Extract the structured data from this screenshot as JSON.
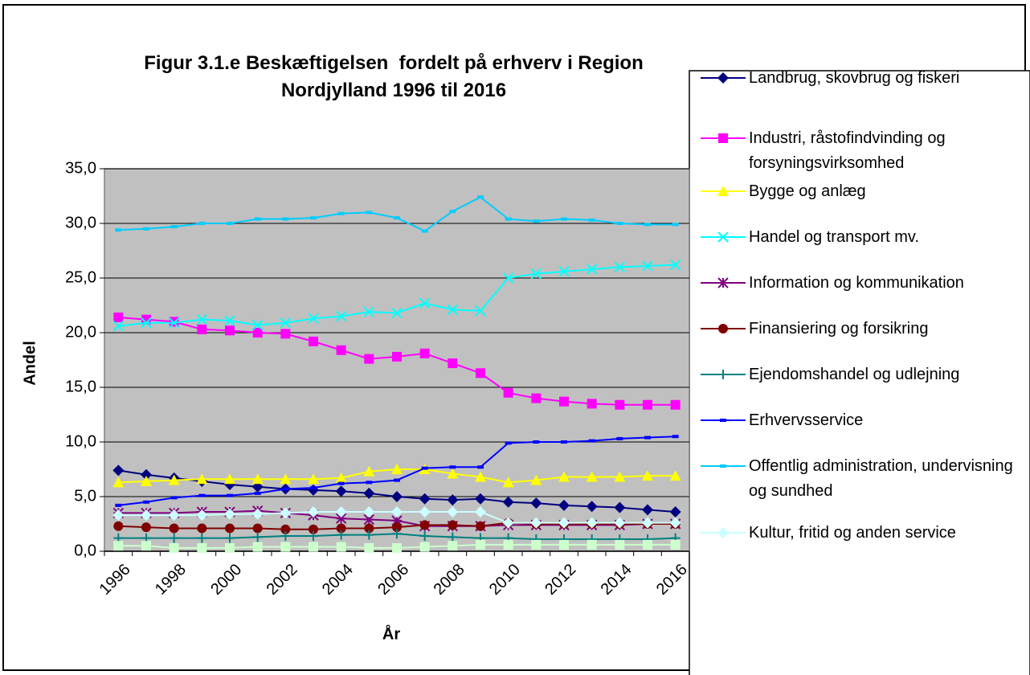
{
  "chart_data": {
    "type": "line",
    "title": "Figur 3.1.e Beskæftigelsen  fordelt på erhverv i Region Nordjylland 1996 til 2016",
    "x_label": "År",
    "y_label": "Andel",
    "categories": [
      "1996",
      null,
      "1998",
      null,
      "2000",
      null,
      "2002",
      null,
      "2004",
      null,
      "2006",
      null,
      "2008",
      null,
      "2010",
      null,
      "2012",
      null,
      "2014",
      null,
      "2016"
    ],
    "ylim": [
      0,
      35
    ],
    "yticks": [
      {
        "value": 0,
        "label": "0,0"
      },
      {
        "value": 5,
        "label": "5,0"
      },
      {
        "value": 10,
        "label": "10,0"
      },
      {
        "value": 15,
        "label": "15,0"
      },
      {
        "value": 20,
        "label": "20,0"
      },
      {
        "value": 25,
        "label": "25,0"
      },
      {
        "value": 30,
        "label": "30,0"
      },
      {
        "value": 35,
        "label": "35,0"
      }
    ],
    "grid": true,
    "plot_background": "#c0c0c0",
    "legend_position": "right",
    "series": [
      {
        "name": "Landbrug, skovbrug og fiskeri",
        "color": "#000080",
        "marker": "diamond",
        "values": [
          7.4,
          7.0,
          6.7,
          6.4,
          6.1,
          5.9,
          5.7,
          5.6,
          5.5,
          5.3,
          5.0,
          4.8,
          4.7,
          4.8,
          4.5,
          4.4,
          4.2,
          4.1,
          4.0,
          3.8,
          3.6
        ]
      },
      {
        "name": "Industri, råstofindvinding og forsyningsvirksomhed",
        "color": "#ff00ff",
        "marker": "square",
        "values": [
          21.4,
          21.2,
          21.0,
          20.3,
          20.2,
          20.0,
          19.9,
          19.2,
          18.4,
          17.6,
          17.8,
          18.1,
          17.2,
          16.3,
          14.5,
          14.0,
          13.7,
          13.5,
          13.4,
          13.4,
          13.4
        ]
      },
      {
        "name": "Bygge og anlæg",
        "color": "#ffff00",
        "marker": "triangle",
        "values": [
          6.3,
          6.4,
          6.5,
          6.6,
          6.6,
          6.6,
          6.6,
          6.6,
          6.7,
          7.3,
          7.5,
          7.5,
          7.1,
          6.8,
          6.3,
          6.5,
          6.8,
          6.8,
          6.8,
          6.9,
          6.9
        ]
      },
      {
        "name": "Handel og transport mv.",
        "color": "#00ffff",
        "marker": "x",
        "values": [
          20.6,
          20.9,
          20.9,
          21.2,
          21.1,
          20.7,
          20.9,
          21.3,
          21.5,
          21.9,
          21.8,
          22.7,
          22.1,
          22.0,
          25.0,
          25.4,
          25.6,
          25.8,
          26.0,
          26.1,
          26.2
        ]
      },
      {
        "name": "Information og kommunikation",
        "color": "#800080",
        "marker": "star",
        "values": [
          3.5,
          3.5,
          3.5,
          3.6,
          3.6,
          3.7,
          3.5,
          3.3,
          3.0,
          2.9,
          2.8,
          2.3,
          2.3,
          2.3,
          2.4,
          2.4,
          2.4,
          2.4,
          2.4,
          2.5,
          2.5
        ]
      },
      {
        "name": "Finansiering og forsikring",
        "color": "#800000",
        "marker": "circle",
        "values": [
          2.3,
          2.2,
          2.1,
          2.1,
          2.1,
          2.1,
          2.0,
          2.0,
          2.1,
          2.1,
          2.2,
          2.4,
          2.4,
          2.3,
          2.6,
          2.5,
          2.5,
          2.5,
          2.5,
          2.5,
          2.5
        ]
      },
      {
        "name": "Ejendomshandel og udlejning",
        "color": "#008080",
        "marker": "plus",
        "values": [
          1.2,
          1.2,
          1.2,
          1.2,
          1.2,
          1.3,
          1.4,
          1.4,
          1.5,
          1.5,
          1.6,
          1.4,
          1.3,
          1.2,
          1.2,
          1.1,
          1.1,
          1.1,
          1.1,
          1.1,
          1.2
        ]
      },
      {
        "name": "Erhvervsservice",
        "color": "#0000ff",
        "marker": "dash",
        "values": [
          4.2,
          4.5,
          4.9,
          5.1,
          5.1,
          5.3,
          5.7,
          5.8,
          6.2,
          6.3,
          6.5,
          7.6,
          7.7,
          7.7,
          9.9,
          10.0,
          10.0,
          10.1,
          10.3,
          10.4,
          10.5
        ]
      },
      {
        "name": "Offentlig administration, undervisning og sundhed",
        "color": "#00ccff",
        "marker": "dash",
        "values": [
          29.4,
          29.5,
          29.7,
          30.0,
          30.0,
          30.4,
          30.4,
          30.5,
          30.9,
          31.0,
          30.5,
          29.3,
          31.1,
          32.4,
          30.4,
          30.2,
          30.4,
          30.3,
          30.0,
          29.9,
          29.9
        ]
      },
      {
        "name": "Kultur, fritid og anden service",
        "color": "#ccffff",
        "marker": "diamond",
        "values": [
          3.3,
          3.3,
          3.3,
          3.3,
          3.4,
          3.4,
          3.5,
          3.6,
          3.6,
          3.6,
          3.6,
          3.6,
          3.6,
          3.6,
          2.6,
          2.6,
          2.6,
          2.6,
          2.6,
          2.6,
          2.6
        ]
      },
      {
        "color": "#ccffcc",
        "marker": "square",
        "values": [
          0.5,
          0.5,
          0.3,
          0.3,
          0.3,
          0.4,
          0.4,
          0.4,
          0.4,
          0.3,
          0.3,
          0.4,
          0.5,
          0.6,
          0.6,
          0.6,
          0.6,
          0.6,
          0.6,
          0.6,
          0.6
        ]
      }
    ]
  }
}
